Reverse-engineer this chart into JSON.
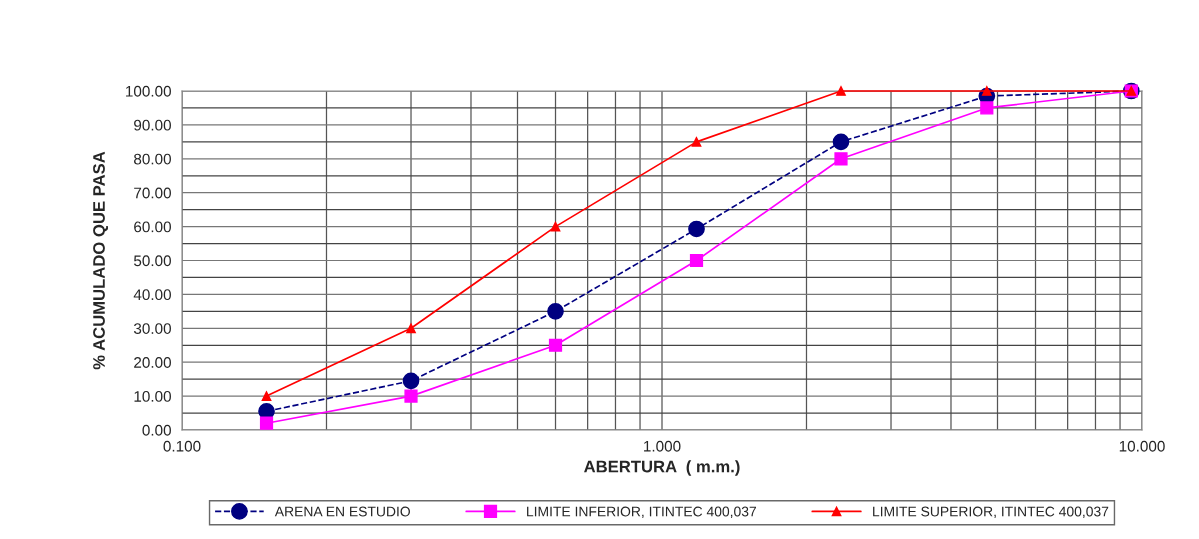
{
  "chart_data": {
    "type": "line",
    "xlabel": "ABERTURA  ( m.m.)",
    "ylabel": "% ACUMULADO QUE PASA",
    "x": [
      0.15,
      0.3,
      0.6,
      1.18,
      2.36,
      4.75,
      9.5
    ],
    "series": [
      {
        "name": "ARENA EN ESTUDIO",
        "color": "#000080",
        "marker": "circle",
        "line_style": "dashed",
        "values": [
          5.5,
          14.5,
          35,
          59.3,
          85,
          98.5,
          100
        ]
      },
      {
        "name": "LIMITE INFERIOR, ITINTEC 400,037",
        "color": "#ff00ff",
        "marker": "square",
        "line_style": "solid",
        "values": [
          2,
          10,
          25,
          50,
          80,
          95,
          100
        ]
      },
      {
        "name": "LIMITE SUPERIOR, ITINTEC 400,037",
        "color": "#ff0000",
        "marker": "triangle",
        "line_style": "solid",
        "values": [
          10,
          30,
          60,
          85,
          100,
          100,
          100
        ]
      }
    ],
    "log": "x",
    "xlim": [
      0.1,
      10
    ],
    "xticks": [
      {
        "value": 0.1,
        "label": "0.100"
      },
      {
        "value": 1,
        "label": "1.000"
      },
      {
        "value": 10,
        "label": "10.000"
      }
    ],
    "ylim": [
      0,
      100
    ],
    "yticks": [
      {
        "value": 0,
        "label": "0.00"
      },
      {
        "value": 10,
        "label": "10.00"
      },
      {
        "value": 20,
        "label": "20.00"
      },
      {
        "value": 30,
        "label": "30.00"
      },
      {
        "value": 40,
        "label": "40.00"
      },
      {
        "value": 50,
        "label": "50.00"
      },
      {
        "value": 60,
        "label": "60.00"
      },
      {
        "value": 70,
        "label": "70.00"
      },
      {
        "value": 80,
        "label": "80.00"
      },
      {
        "value": 90,
        "label": "90.00"
      },
      {
        "value": 100,
        "label": "100.00"
      }
    ],
    "grid": true,
    "legend": "bottom"
  }
}
